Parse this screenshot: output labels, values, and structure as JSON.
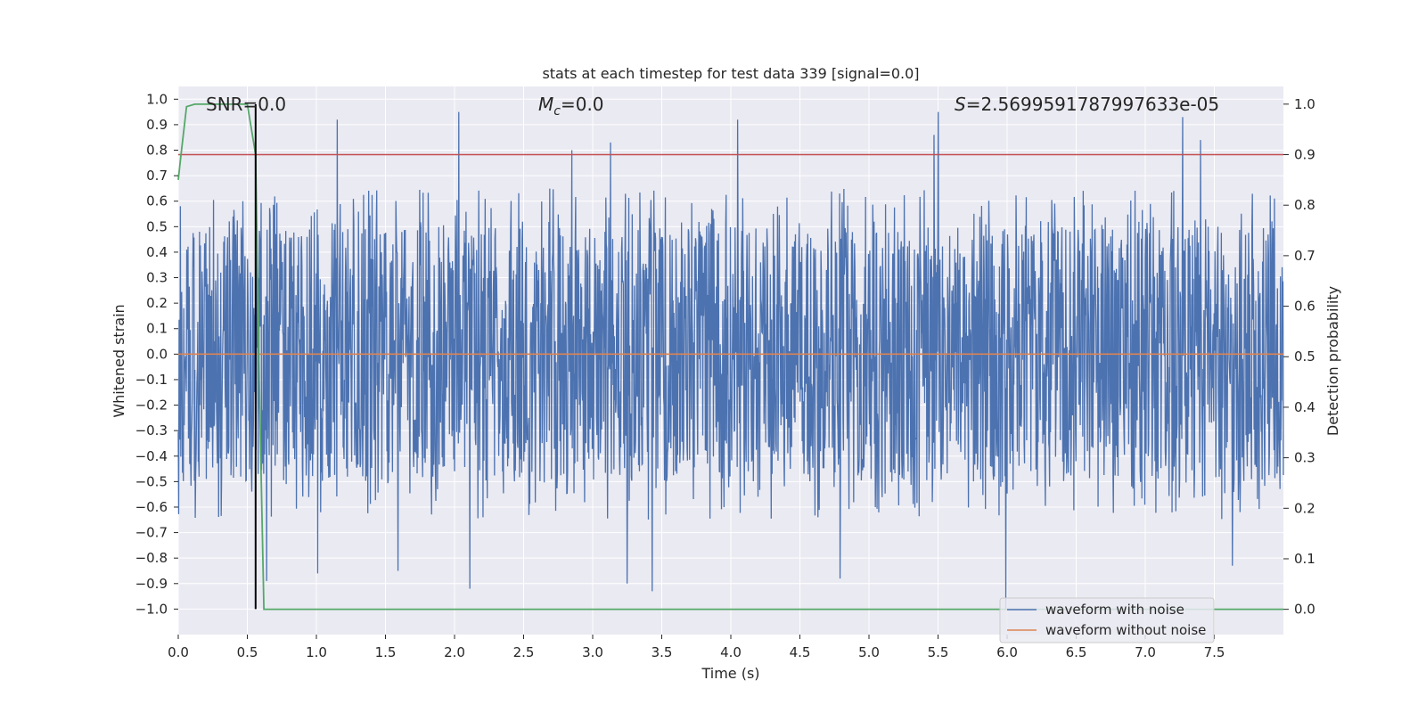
{
  "chart_data": {
    "type": "line",
    "title": "stats at each timestep for test data 339 [signal=0.0]",
    "xlabel": "Time (s)",
    "ylabel": "Whitened strain",
    "y2label": "Detection probability",
    "xlim": [
      0.0,
      8.0
    ],
    "ylim": [
      -1.1,
      1.05
    ],
    "y2lim": [
      -0.05,
      1.035
    ],
    "x_ticks": [
      0.0,
      0.5,
      1.0,
      1.5,
      2.0,
      2.5,
      3.0,
      3.5,
      4.0,
      4.5,
      5.0,
      5.5,
      6.0,
      6.5,
      7.0,
      7.5
    ],
    "x_tick_labels": [
      "0.0",
      "0.5",
      "1.0",
      "1.5",
      "2.0",
      "2.5",
      "3.0",
      "3.5",
      "4.0",
      "4.5",
      "5.0",
      "5.5",
      "6.0",
      "6.5",
      "7.0",
      "7.5"
    ],
    "y_ticks": [
      1.0,
      0.9,
      0.8,
      0.7,
      0.6,
      0.5,
      0.4,
      0.3,
      0.2,
      0.1,
      0.0,
      -0.1,
      -0.2,
      -0.3,
      -0.4,
      -0.5,
      -0.6,
      -0.7,
      -0.8,
      -0.9,
      -1.0
    ],
    "y_tick_labels": [
      "1.0",
      "0.9",
      "0.8",
      "0.7",
      "0.6",
      "0.5",
      "0.4",
      "0.3",
      "0.2",
      "0.1",
      "0.0",
      "−0.1",
      "−0.2",
      "−0.3",
      "−0.4",
      "−0.5",
      "−0.6",
      "−0.7",
      "−0.8",
      "−0.9",
      "−1.0"
    ],
    "y2_ticks": [
      1.0,
      0.9,
      0.8,
      0.7,
      0.6,
      0.5,
      0.4,
      0.3,
      0.2,
      0.1,
      0.0
    ],
    "y2_tick_labels": [
      "1.0",
      "0.9",
      "0.8",
      "0.7",
      "0.6",
      "0.5",
      "0.4",
      "0.3",
      "0.2",
      "0.1",
      "0.0"
    ],
    "annotations": {
      "snr": "SNR=0.0",
      "mc_symbol": "M",
      "mc_sub": "c",
      "mc_value": "=0.0",
      "s_symbol": "S",
      "s_value": "=2.5699591787997633e-05"
    },
    "series": [
      {
        "name": "waveform with noise",
        "color": "#4c72b0",
        "axis": "left",
        "style": "dense noise, x 0.0–8.0 s",
        "typical_range": [
          -0.45,
          0.5
        ],
        "peaks": [
          {
            "x": 1.15,
            "y": 0.92
          },
          {
            "x": 2.03,
            "y": 0.95
          },
          {
            "x": 2.85,
            "y": 0.8
          },
          {
            "x": 3.13,
            "y": 0.83
          },
          {
            "x": 4.05,
            "y": 0.92
          },
          {
            "x": 5.47,
            "y": 0.86
          },
          {
            "x": 5.5,
            "y": 0.95
          },
          {
            "x": 7.27,
            "y": 0.93
          },
          {
            "x": 7.4,
            "y": 0.84
          }
        ],
        "troughs": [
          {
            "x": 0.64,
            "y": -0.89
          },
          {
            "x": 1.01,
            "y": -0.86
          },
          {
            "x": 1.59,
            "y": -0.85
          },
          {
            "x": 2.11,
            "y": -0.92
          },
          {
            "x": 3.25,
            "y": -0.9
          },
          {
            "x": 3.43,
            "y": -0.93
          },
          {
            "x": 4.79,
            "y": -0.88
          },
          {
            "x": 5.99,
            "y": -1.0
          },
          {
            "x": 7.63,
            "y": -0.83
          }
        ]
      },
      {
        "name": "waveform without noise",
        "color": "#dd8452",
        "axis": "left",
        "x": [
          0.0,
          8.0
        ],
        "y": [
          0.0,
          0.0
        ]
      },
      {
        "name": "detection probability",
        "color": "#55a868",
        "axis": "right",
        "x": [
          0.0,
          0.02,
          0.06,
          0.12,
          0.2,
          0.3,
          0.4,
          0.5,
          0.56,
          0.59,
          0.62,
          8.0
        ],
        "y": [
          0.85,
          0.9,
          0.995,
          1.0,
          1.0,
          1.0,
          1.0,
          1.0,
          0.9,
          0.4,
          0.0,
          0.0
        ]
      }
    ],
    "threshold": {
      "axis": "right",
      "y": 0.9,
      "color": "#c44e52"
    },
    "marker_line": {
      "x": 0.56,
      "color": "#000000"
    },
    "legend": {
      "position": "bottom-right",
      "entries": [
        {
          "label": "waveform with noise",
          "color": "#4c72b0"
        },
        {
          "label": "waveform without noise",
          "color": "#dd8452"
        }
      ]
    },
    "background": "#eaeaf2",
    "grid": true
  }
}
